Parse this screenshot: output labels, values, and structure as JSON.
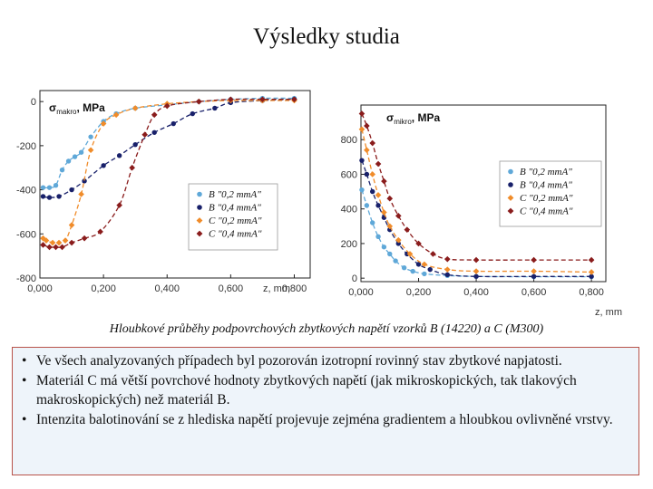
{
  "title": "Výsledky studia",
  "caption": "Hloubkové průběhy podpovrchových zbytkových napětí vzorků B (14220) a C (M300)",
  "notes": [
    "Ve všech analyzovaných případech byl pozorován izotropní rovinný stav zbytkové napjatosti.",
    "Materiál C má větší povrchové hodnoty zbytkových napětí (jak mikroskopických, tak tlakových makroskopických) než materiál B.",
    "Intenzita balotinování se z hlediska napětí projevuje zejména gradientem a hloubkou ovlivněné vrstvy."
  ],
  "colors": {
    "s1": "#5fa8d8",
    "s2": "#18206a",
    "s3": "#f08c2a",
    "s4": "#8a1c1c"
  },
  "chart_data": [
    {
      "type": "scatter",
      "title": "",
      "ylabel": "σmakro, MPa",
      "ylabel_main": "σ",
      "ylabel_sub": "makro",
      "ylabel_rest": ", MPa",
      "xlabel": "z, mm",
      "xlim": [
        0,
        0.85
      ],
      "ylim": [
        -800,
        50
      ],
      "xticks": [
        0,
        0.2,
        0.4,
        0.6,
        0.8
      ],
      "xtick_labels": [
        "0,000",
        "0,200",
        "0,400",
        "0,600",
        "0,800"
      ],
      "yticks": [
        0,
        -200,
        -400,
        -600,
        -800
      ],
      "ytick_labels": [
        "0",
        "-200",
        "-400",
        "-600",
        "-800"
      ],
      "legend_position": "lower-right",
      "series": [
        {
          "name": "B \"0,2 mmA\"",
          "color_key": "s1",
          "marker": "circle",
          "points": [
            [
              0.01,
              -390
            ],
            [
              0.03,
              -390
            ],
            [
              0.05,
              -380
            ],
            [
              0.07,
              -310
            ],
            [
              0.09,
              -270
            ],
            [
              0.11,
              -250
            ],
            [
              0.13,
              -230
            ],
            [
              0.16,
              -160
            ],
            [
              0.2,
              -90
            ],
            [
              0.24,
              -55
            ],
            [
              0.3,
              -30
            ],
            [
              0.4,
              -15
            ],
            [
              0.5,
              0
            ],
            [
              0.6,
              10
            ],
            [
              0.7,
              15
            ],
            [
              0.8,
              15
            ]
          ]
        },
        {
          "name": "B \"0,4 mmA\"",
          "color_key": "s2",
          "marker": "circle",
          "points": [
            [
              0.01,
              -430
            ],
            [
              0.03,
              -435
            ],
            [
              0.06,
              -430
            ],
            [
              0.1,
              -400
            ],
            [
              0.14,
              -360
            ],
            [
              0.2,
              -290
            ],
            [
              0.25,
              -245
            ],
            [
              0.3,
              -195
            ],
            [
              0.36,
              -140
            ],
            [
              0.42,
              -100
            ],
            [
              0.48,
              -55
            ],
            [
              0.55,
              -30
            ],
            [
              0.6,
              -5
            ],
            [
              0.7,
              5
            ],
            [
              0.8,
              10
            ]
          ]
        },
        {
          "name": "C \"0,2 mmA\"",
          "color_key": "s3",
          "marker": "diamond",
          "points": [
            [
              0.01,
              -620
            ],
            [
              0.02,
              -630
            ],
            [
              0.04,
              -640
            ],
            [
              0.06,
              -640
            ],
            [
              0.08,
              -630
            ],
            [
              0.1,
              -560
            ],
            [
              0.13,
              -420
            ],
            [
              0.16,
              -220
            ],
            [
              0.2,
              -100
            ],
            [
              0.24,
              -60
            ],
            [
              0.3,
              -30
            ],
            [
              0.4,
              -10
            ],
            [
              0.5,
              0
            ],
            [
              0.6,
              5
            ],
            [
              0.7,
              5
            ],
            [
              0.8,
              5
            ]
          ]
        },
        {
          "name": "C \"0,4 mmA\"",
          "color_key": "s4",
          "marker": "diamond",
          "points": [
            [
              0.01,
              -650
            ],
            [
              0.03,
              -660
            ],
            [
              0.05,
              -660
            ],
            [
              0.07,
              -660
            ],
            [
              0.1,
              -640
            ],
            [
              0.14,
              -620
            ],
            [
              0.19,
              -590
            ],
            [
              0.25,
              -470
            ],
            [
              0.29,
              -300
            ],
            [
              0.33,
              -150
            ],
            [
              0.36,
              -60
            ],
            [
              0.4,
              -20
            ],
            [
              0.5,
              0
            ],
            [
              0.6,
              10
            ],
            [
              0.7,
              10
            ],
            [
              0.8,
              10
            ]
          ]
        }
      ]
    },
    {
      "type": "scatter",
      "title": "",
      "ylabel": "σmikro, MPa",
      "ylabel_main": "σ",
      "ylabel_sub": "mikro",
      "ylabel_rest": ", MPa",
      "xlabel": "z, mm",
      "xlim": [
        0,
        0.85
      ],
      "ylim": [
        -20,
        1000
      ],
      "xticks": [
        0,
        0.2,
        0.4,
        0.6,
        0.8
      ],
      "xtick_labels": [
        "0,000",
        "0,200",
        "0,400",
        "0,600",
        "0,800"
      ],
      "yticks": [
        0,
        200,
        400,
        600,
        800
      ],
      "ytick_labels": [
        "0",
        "200",
        "400",
        "600",
        "800"
      ],
      "legend_position": "right",
      "series": [
        {
          "name": "B \"0,2 mmA\"",
          "color_key": "s1",
          "marker": "circle",
          "points": [
            [
              0.003,
              510
            ],
            [
              0.02,
              420
            ],
            [
              0.04,
              320
            ],
            [
              0.06,
              240
            ],
            [
              0.08,
              180
            ],
            [
              0.1,
              140
            ],
            [
              0.12,
              100
            ],
            [
              0.15,
              60
            ],
            [
              0.18,
              40
            ],
            [
              0.22,
              25
            ],
            [
              0.3,
              15
            ],
            [
              0.4,
              10
            ],
            [
              0.6,
              8
            ],
            [
              0.8,
              8
            ]
          ]
        },
        {
          "name": "B \"0,4 mmA\"",
          "color_key": "s2",
          "marker": "circle",
          "points": [
            [
              0.003,
              680
            ],
            [
              0.02,
              600
            ],
            [
              0.04,
              500
            ],
            [
              0.06,
              420
            ],
            [
              0.08,
              350
            ],
            [
              0.1,
              280
            ],
            [
              0.13,
              200
            ],
            [
              0.16,
              140
            ],
            [
              0.2,
              80
            ],
            [
              0.24,
              50
            ],
            [
              0.3,
              20
            ],
            [
              0.4,
              10
            ],
            [
              0.6,
              10
            ],
            [
              0.8,
              10
            ]
          ]
        },
        {
          "name": "C \"0,2 mmA\"",
          "color_key": "s3",
          "marker": "diamond",
          "points": [
            [
              0.003,
              860
            ],
            [
              0.02,
              740
            ],
            [
              0.04,
              600
            ],
            [
              0.06,
              480
            ],
            [
              0.08,
              380
            ],
            [
              0.1,
              300
            ],
            [
              0.13,
              220
            ],
            [
              0.17,
              140
            ],
            [
              0.22,
              80
            ],
            [
              0.3,
              50
            ],
            [
              0.4,
              40
            ],
            [
              0.6,
              40
            ],
            [
              0.8,
              35
            ]
          ]
        },
        {
          "name": "C \"0,4 mmA\"",
          "color_key": "s4",
          "marker": "diamond",
          "points": [
            [
              0.003,
              950
            ],
            [
              0.02,
              880
            ],
            [
              0.04,
              780
            ],
            [
              0.06,
              660
            ],
            [
              0.08,
              560
            ],
            [
              0.1,
              460
            ],
            [
              0.13,
              360
            ],
            [
              0.16,
              280
            ],
            [
              0.2,
              200
            ],
            [
              0.25,
              140
            ],
            [
              0.3,
              110
            ],
            [
              0.4,
              105
            ],
            [
              0.6,
              105
            ],
            [
              0.8,
              105
            ]
          ]
        }
      ]
    }
  ]
}
